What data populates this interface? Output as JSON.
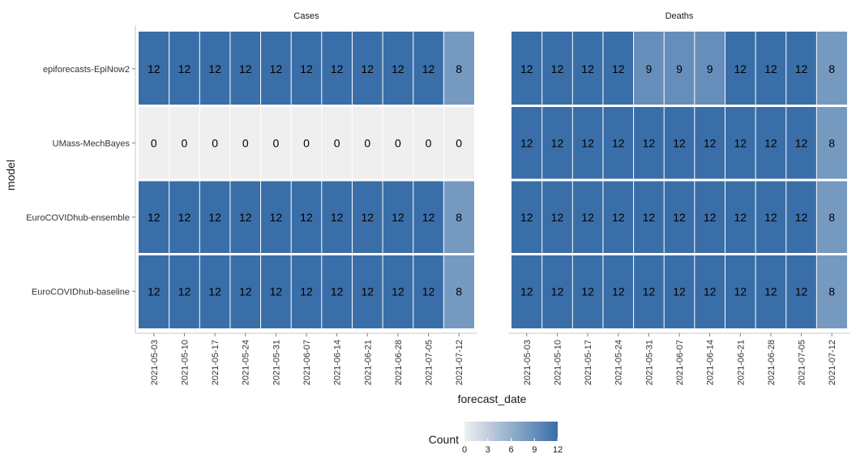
{
  "chart_data": {
    "type": "heatmap",
    "facets": [
      "Cases",
      "Deaths"
    ],
    "x_label": "forecast_date",
    "y_label": "model",
    "x": [
      "2021-05-03",
      "2021-05-10",
      "2021-05-17",
      "2021-05-24",
      "2021-05-31",
      "2021-06-07",
      "2021-06-14",
      "2021-06-21",
      "2021-06-28",
      "2021-07-05",
      "2021-07-12"
    ],
    "y": [
      "epiforecasts-EpiNow2",
      "UMass-MechBayes",
      "EuroCOVIDhub-ensemble",
      "EuroCOVIDhub-baseline"
    ],
    "values": {
      "Cases": [
        [
          12,
          12,
          12,
          12,
          12,
          12,
          12,
          12,
          12,
          12,
          8
        ],
        [
          0,
          0,
          0,
          0,
          0,
          0,
          0,
          0,
          0,
          0,
          0
        ],
        [
          12,
          12,
          12,
          12,
          12,
          12,
          12,
          12,
          12,
          12,
          8
        ],
        [
          12,
          12,
          12,
          12,
          12,
          12,
          12,
          12,
          12,
          12,
          8
        ]
      ],
      "Deaths": [
        [
          12,
          12,
          12,
          12,
          9,
          9,
          9,
          12,
          12,
          12,
          8
        ],
        [
          12,
          12,
          12,
          12,
          12,
          12,
          12,
          12,
          12,
          12,
          8
        ],
        [
          12,
          12,
          12,
          12,
          12,
          12,
          12,
          12,
          12,
          12,
          8
        ],
        [
          12,
          12,
          12,
          12,
          12,
          12,
          12,
          12,
          12,
          12,
          8
        ]
      ]
    },
    "legend": {
      "title": "Count",
      "ticks": [
        0,
        3,
        6,
        9,
        12
      ],
      "range": [
        0,
        12
      ],
      "color_low": "#efefef",
      "color_high": "#3a6ea8",
      "position": "bottom"
    }
  }
}
